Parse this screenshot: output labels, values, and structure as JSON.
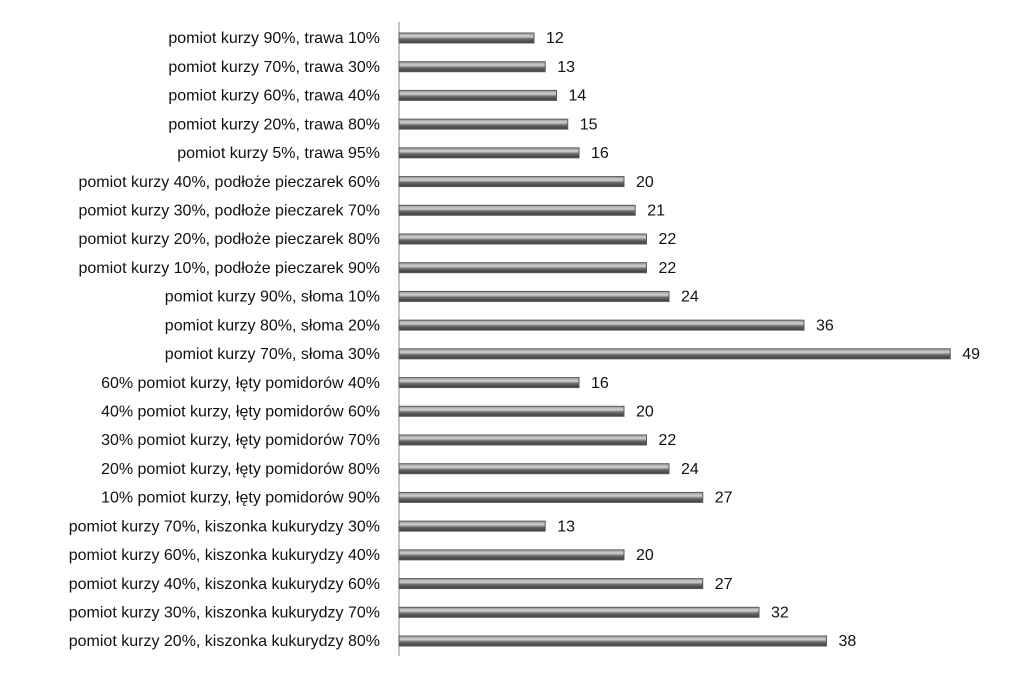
{
  "chart_data": {
    "type": "bar",
    "orientation": "horizontal",
    "categories": [
      "pomiot kurzy 90%, trawa 10%",
      "pomiot kurzy 70%, trawa 30%",
      "pomiot kurzy 60%, trawa 40%",
      "pomiot kurzy 20%, trawa 80%",
      "pomiot kurzy 5%, trawa 95%",
      "pomiot kurzy 40%, podłoże pieczarek 60%",
      "pomiot kurzy 30%, podłoże pieczarek 70%",
      "pomiot kurzy 20%, podłoże pieczarek 80%",
      "pomiot kurzy 10%, podłoże pieczarek 90%",
      "pomiot kurzy 90%, słoma 10%",
      "pomiot kurzy 80%, słoma 20%",
      "pomiot kurzy 70%, słoma 30%",
      "60% pomiot kurzy, łęty pomidorów 40%",
      "40% pomiot kurzy, łęty pomidorów 60%",
      "30% pomiot kurzy, łęty pomidorów 70%",
      "20% pomiot kurzy, łęty pomidorów 80%",
      "10% pomiot kurzy, łęty pomidorów 90%",
      "pomiot kurzy 70%, kiszonka kukurydzy 30%",
      "pomiot kurzy 60%, kiszonka kukurydzy 40%",
      "pomiot kurzy 40%, kiszonka kukurydzy 60%",
      "pomiot kurzy 30%, kiszonka kukurydzy 70%",
      "pomiot kurzy 20%, kiszonka kukurydzy 80%"
    ],
    "values": [
      12,
      13,
      14,
      15,
      16,
      20,
      21,
      22,
      22,
      24,
      36,
      49,
      16,
      20,
      22,
      24,
      27,
      13,
      20,
      27,
      32,
      38
    ],
    "color": "#5a5a5a"
  }
}
